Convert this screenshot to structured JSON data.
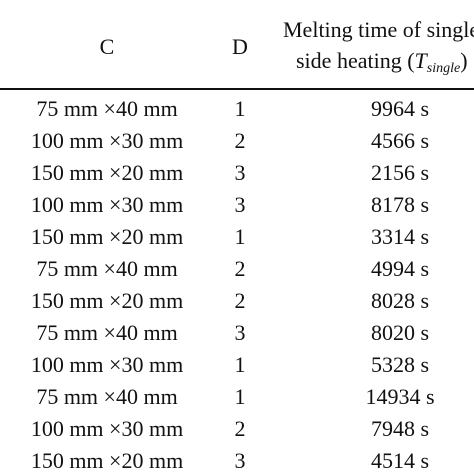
{
  "table": {
    "header": [
      "C",
      "D",
      "Melting time of single-",
      "side heating (",
      "T",
      "single",
      ")"
    ],
    "rows": [
      [
        "75 mm ×40 mm",
        "1",
        "9964 s"
      ],
      [
        "100 mm ×30 mm",
        "2",
        "4566 s"
      ],
      [
        "150 mm ×20 mm",
        "3",
        "2156 s"
      ],
      [
        "100 mm ×30 mm",
        "3",
        "8178 s"
      ],
      [
        "150 mm ×20 mm",
        "1",
        "3314 s"
      ],
      [
        "75 mm ×40 mm",
        "2",
        "4994 s"
      ],
      [
        "150 mm ×20 mm",
        "2",
        "8028 s"
      ],
      [
        "75 mm ×40 mm",
        "3",
        "8020 s"
      ],
      [
        "100 mm ×30 mm",
        "1",
        "5328 s"
      ],
      [
        "75 mm ×40 mm",
        "1",
        "14934 s"
      ],
      [
        "100 mm ×30 mm",
        "2",
        "7948 s"
      ],
      [
        "150 mm ×20 mm",
        "3",
        "4514 s"
      ]
    ]
  }
}
